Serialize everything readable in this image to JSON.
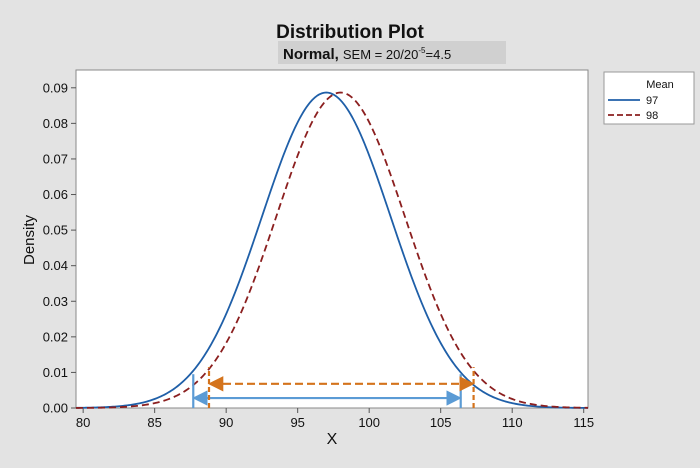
{
  "chart_data": {
    "type": "line",
    "title": "Distribution Plot",
    "subtitle": {
      "bold": "Normal,",
      "sem_prefix": "SEM = 20/20",
      "sem_exp": "-5",
      "sem_suffix": "=4.5"
    },
    "xlabel": "X",
    "ylabel": "Density",
    "xlim": [
      79.5,
      115.3
    ],
    "ylim": [
      0,
      0.095
    ],
    "xticks": [
      80,
      85,
      90,
      95,
      100,
      105,
      110,
      115
    ],
    "yticks": [
      0.0,
      0.01,
      0.02,
      0.03,
      0.04,
      0.05,
      0.06,
      0.07,
      0.08,
      0.09
    ],
    "ytick_labels": [
      "0.00",
      "0.01",
      "0.02",
      "0.03",
      "0.04",
      "0.05",
      "0.06",
      "0.07",
      "0.08",
      "0.09"
    ],
    "legend": {
      "title": "Mean",
      "placement": "right",
      "items": [
        "97",
        "98"
      ]
    },
    "distribution": "normal",
    "sd": 4.5,
    "series": [
      {
        "name": "97",
        "mean": 97,
        "color": "#1f5fa8",
        "style": "solid"
      },
      {
        "name": "98",
        "mean": 98,
        "color": "#8b1f1f",
        "style": "dashed"
      }
    ],
    "annotations": [
      {
        "type": "interval-arrow",
        "series": "97",
        "x_start": 87.7,
        "x_end": 106.4,
        "y": 0.0028,
        "color": "#5b9bd5",
        "style": "solid",
        "marker_top": 0.0095
      },
      {
        "type": "interval-arrow",
        "series": "98",
        "x_start": 88.8,
        "x_end": 107.3,
        "y": 0.0068,
        "color": "#d4731c",
        "style": "dashed",
        "marker_top": 0.0115
      }
    ],
    "grid": false
  }
}
